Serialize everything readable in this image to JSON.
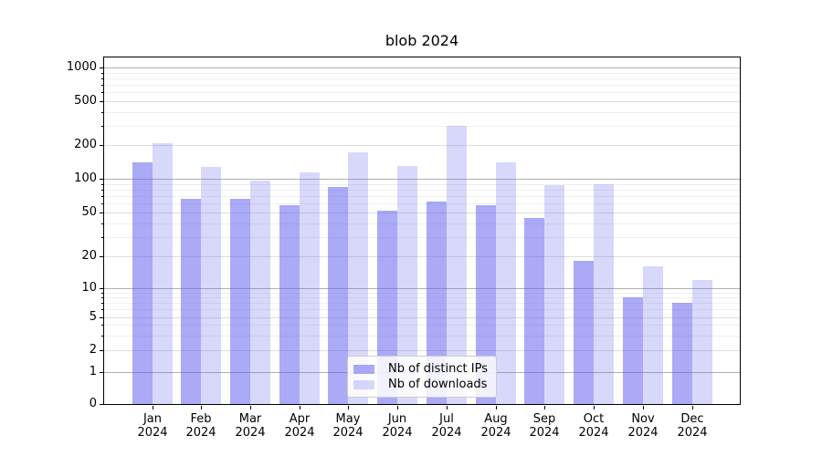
{
  "chart_data": {
    "type": "bar",
    "title": "blob 2024",
    "categories": [
      "Jan 2024",
      "Feb 2024",
      "Mar 2024",
      "Apr 2024",
      "May 2024",
      "Jun 2024",
      "Jul 2024",
      "Aug 2024",
      "Sep 2024",
      "Oct 2024",
      "Nov 2024",
      "Dec 2024"
    ],
    "series": [
      {
        "name": "Nb of distinct IPs",
        "color": "rgba(100,100,240,0.55)",
        "values": [
          140,
          67,
          66,
          58,
          85,
          52,
          63,
          58,
          45,
          18,
          8,
          7
        ]
      },
      {
        "name": "Nb of downloads",
        "color": "rgba(100,100,240,0.25)",
        "values": [
          210,
          128,
          97,
          115,
          175,
          132,
          300,
          140,
          88,
          90,
          16,
          12
        ]
      }
    ],
    "yscale": "symlog",
    "yticks": [
      0,
      1,
      2,
      5,
      10,
      20,
      50,
      100,
      200,
      500,
      1000
    ],
    "ylim": [
      0,
      1200
    ],
    "xlabel": "",
    "ylabel": "",
    "grid": true,
    "legend_position": "lower center",
    "colors": {
      "major_grid": "#b0b0b0",
      "labeled_minor_grid": "#dcdcdc",
      "minor_grid": "#efefef",
      "axis": "#000000",
      "background": "#ffffff"
    }
  }
}
